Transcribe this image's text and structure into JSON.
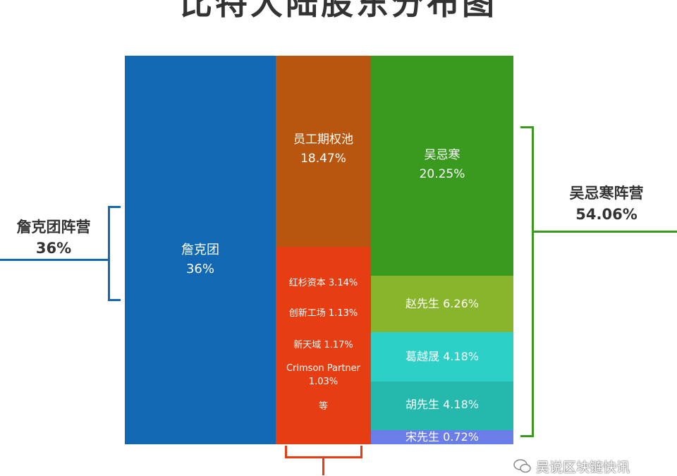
{
  "title": "比特大陆股东分布图",
  "colors": {
    "zhan_camp": "#1268b3",
    "employee_pool": "#b8560f",
    "investors": "#e63d12",
    "wu": "#3a9a1f",
    "zhao": "#88b52b",
    "ge": "#2dd0c6",
    "hu": "#25b8ad",
    "song": "#6a7de8"
  },
  "chart_data": {
    "type": "treemap",
    "title": "比特大陆股东分布图",
    "blocks": [
      {
        "key": "zhan",
        "name": "詹克团",
        "value": 36,
        "label": "36%"
      },
      {
        "key": "employee_pool",
        "name": "员工期权池",
        "value": 18.47,
        "label": "18.47%"
      },
      {
        "key": "investors",
        "name": "",
        "items": [
          {
            "name": "红杉资本",
            "value": 3.14,
            "label": "红杉资本 3.14%"
          },
          {
            "name": "创新工场",
            "value": 1.13,
            "label": "创新工场 1.13%"
          },
          {
            "name": "新天域",
            "value": 1.17,
            "label": "新天域 1.17%"
          },
          {
            "name": "Crimson Partner",
            "value": 1.03,
            "label1": "Crimson Partner",
            "label2": "1.03%"
          },
          {
            "name": "等",
            "label": "等"
          }
        ]
      },
      {
        "key": "wu",
        "name": "吴忌寒",
        "value": 20.25,
        "label": "20.25%"
      },
      {
        "key": "zhao",
        "name": "赵先生",
        "value": 6.26,
        "label": "赵先生 6.26%"
      },
      {
        "key": "ge",
        "name": "葛越晟",
        "value": 4.18,
        "label": "葛越晟 4.18%"
      },
      {
        "key": "hu",
        "name": "胡先生",
        "value": 4.18,
        "label": "胡先生 4.18%"
      },
      {
        "key": "song",
        "name": "宋先生",
        "value": 0.72,
        "label": "宋先生 0.72%"
      }
    ],
    "camps": [
      {
        "name": "詹克团阵营",
        "value": 36,
        "label": "36%"
      },
      {
        "name": "吴忌寒阵营",
        "value": 54.06,
        "label": "54.06%"
      }
    ]
  },
  "watermark": "吴说区块链快讯"
}
